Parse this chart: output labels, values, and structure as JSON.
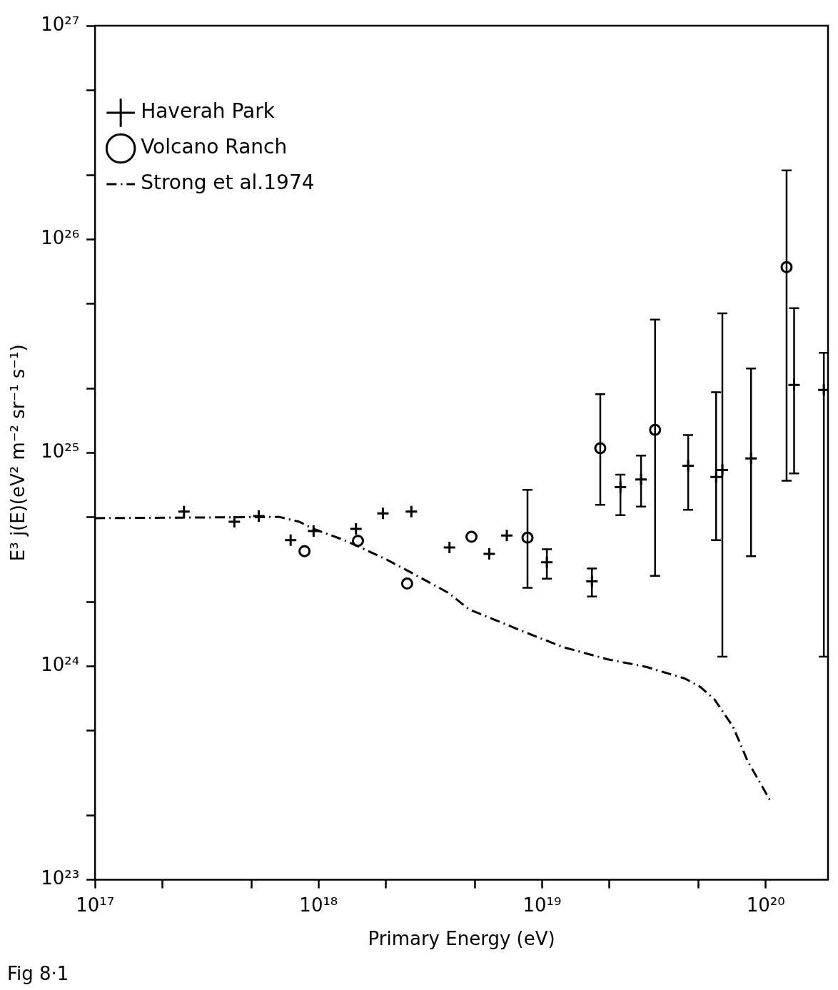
{
  "chart_data": {
    "type": "scatter",
    "xlabel": "Primary Energy (eV)",
    "ylabel": "E³ j(E)(eV² m⁻² sr⁻¹ s⁻¹)",
    "log": "xy",
    "grid": false,
    "legend": "top left",
    "annotations": [
      "Fig 8·1"
    ],
    "xlim": [
      1e+17,
      1.9e+20
    ],
    "ylim": [
      1e+23,
      1e+27
    ],
    "xticks": [
      {
        "value": 1e+17,
        "label": "10¹⁷"
      },
      {
        "value": 2e+17,
        "label": null
      },
      {
        "value": 5e+17,
        "label": null
      },
      {
        "value": 1e+18,
        "label": "10¹⁸"
      },
      {
        "value": 2e+18,
        "label": null
      },
      {
        "value": 5e+18,
        "label": null
      },
      {
        "value": 1e+19,
        "label": "10¹⁹"
      },
      {
        "value": 2e+19,
        "label": null
      },
      {
        "value": 5e+19,
        "label": null
      },
      {
        "value": 1e+20,
        "label": "10²⁰"
      }
    ],
    "yticks": [
      {
        "value": 1e+23,
        "label": "10²³"
      },
      {
        "value": 2e+23,
        "label": null
      },
      {
        "value": 5e+23,
        "label": null
      },
      {
        "value": 1e+24,
        "label": "10²⁴"
      },
      {
        "value": 2e+24,
        "label": null
      },
      {
        "value": 5e+24,
        "label": null
      },
      {
        "value": 1e+25,
        "label": "10²⁵"
      },
      {
        "value": 2e+25,
        "label": null
      },
      {
        "value": 5e+25,
        "label": null
      },
      {
        "value": 1e+26,
        "label": "10²⁶"
      },
      {
        "value": 2e+26,
        "label": null
      },
      {
        "value": 5e+26,
        "label": null
      },
      {
        "value": 1e+27,
        "label": "10²⁷"
      }
    ],
    "series": [
      {
        "name": "Haverah Park",
        "type": "scatter",
        "marker": "cross",
        "color": "#000000",
        "x": [
          2.5e+17,
          4.2e+17,
          5.4e+17,
          7.5e+17,
          9.5e+17,
          1.47e+18,
          1.94e+18,
          2.6e+18,
          3.85e+18,
          5.8e+18,
          6.95e+18,
          1.05e+19,
          1.67e+19,
          2.24e+19,
          2.77e+19,
          4.5e+19,
          6e+19,
          6.4e+19,
          8.6e+19,
          1.34e+20,
          1.82e+20
        ],
        "values": [
          5.3e+24,
          4.75e+24,
          5.05e+24,
          3.9e+24,
          4.3e+24,
          4.4e+24,
          5.2e+24,
          5.3e+24,
          3.6e+24,
          3.36e+24,
          4.1e+24,
          3.07e+24,
          2.5e+24,
          6.9e+24,
          7.5e+24,
          8.7e+24,
          7.7e+24,
          8.3e+24,
          9.4e+24,
          2.08e+25,
          1.97e+25
        ],
        "errors": [
          null,
          null,
          null,
          null,
          null,
          null,
          null,
          null,
          null,
          null,
          null,
          [
            2.57e+24,
            3.53e+24
          ],
          [
            2.12e+24,
            2.87e+24
          ],
          [
            5.1e+24,
            7.9e+24
          ],
          [
            5.6e+24,
            9.7e+24
          ],
          [
            5.4e+24,
            1.21e+25
          ],
          [
            3.9e+24,
            1.92e+25
          ],
          [
            1.11e+24,
            4.5e+25
          ],
          [
            3.28e+24,
            2.48e+25
          ],
          [
            8e+24,
            4.75e+25
          ],
          [
            1.11e+24,
            2.94e+25
          ]
        ]
      },
      {
        "name": "Volcano Ranch",
        "type": "scatter",
        "marker": "circle",
        "color": "#000000",
        "x": [
          8.65e+17,
          1.5e+18,
          2.49e+18,
          4.83e+18,
          8.6e+18,
          1.82e+19,
          3.2e+19,
          1.24e+20
        ],
        "values": [
          3.46e+24,
          3.87e+24,
          2.44e+24,
          4.04e+24,
          4e+24,
          1.05e+25,
          1.28e+25,
          7.4e+25
        ],
        "errors": [
          null,
          null,
          null,
          null,
          [
            2.33e+24,
            6.7e+24
          ],
          [
            5.7e+24,
            1.88e+25
          ],
          [
            2.65e+24,
            4.2e+25
          ],
          [
            7.4e+24,
            2.1e+26
          ]
        ]
      },
      {
        "name": "Strong et al.1974",
        "type": "line",
        "marker": "none",
        "line_style": "dashed",
        "color": "#000000",
        "x": [
          1e+17,
          6.1e+17,
          6.7e+17,
          8.2e+17,
          9.5e+17,
          1.3e+18,
          1.97e+18,
          2.64e+18,
          3.8e+18,
          4.7e+18,
          8.3e+18,
          1.24e+19,
          1.95e+19,
          2.96e+19,
          4.36e+19,
          5.1e+19,
          5.9e+19,
          7.15e+19,
          8.3e+19,
          1.06e+20
        ],
        "values": [
          4.94e+24,
          5e+24,
          5e+24,
          4.75e+24,
          4.4e+24,
          3.9e+24,
          3.2e+24,
          2.72e+24,
          2.21e+24,
          1.85e+24,
          1.45e+24,
          1.23e+24,
          1.08e+24,
          9.9e+23,
          8.75e+23,
          8e+23,
          7e+23,
          5.2e+23,
          3.6e+23,
          2.3e+23
        ]
      }
    ]
  }
}
